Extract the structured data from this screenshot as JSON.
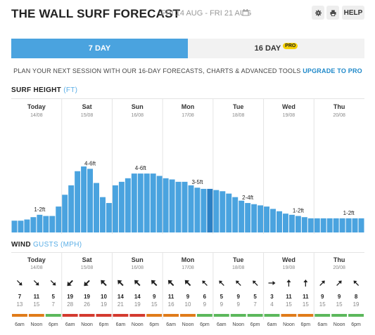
{
  "header": {
    "title": "THE WALL SURF FORECAST",
    "date_range": "FRI 14 AUG - FRI 21 AUG",
    "help_label": "HELP"
  },
  "icons": {
    "calendar": "calendar-icon",
    "settings": "gear-icon",
    "print": "print-icon"
  },
  "tabs": {
    "seven_day": "7 DAY",
    "sixteen_day": "16 DAY",
    "pro_badge": "PRO"
  },
  "promo": {
    "text": "PLAN YOUR NEXT SESSION WITH OUR 16-DAY FORECASTS, CHARTS & ADVANCED TOOLS ",
    "link": "UPGRADE TO PRO"
  },
  "surf": {
    "label": "SURF HEIGHT",
    "unit": "(FT)"
  },
  "wind": {
    "label": "WIND",
    "unit": "GUSTS (MPH)"
  },
  "days": [
    {
      "name": "Today",
      "date": "14/08"
    },
    {
      "name": "Sat",
      "date": "15/08"
    },
    {
      "name": "Sun",
      "date": "16/08"
    },
    {
      "name": "Mon",
      "date": "17/08"
    },
    {
      "name": "Tue",
      "date": "18/08"
    },
    {
      "name": "Wed",
      "date": "19/08"
    },
    {
      "name": "Thu",
      "date": "20/08"
    }
  ],
  "colors": {
    "bar": "#4aa3df",
    "bar_current": "#2b7fc4",
    "orange": "#e07b1a",
    "red": "#d43a2f",
    "green": "#5cb85c"
  },
  "chart_data": {
    "type": "bar",
    "title": "SURF HEIGHT",
    "ylabel": "(FT)",
    "values": [
      1.0,
      1.0,
      1.1,
      1.3,
      1.5,
      1.4,
      1.4,
      2.2,
      3.2,
      4.0,
      5.2,
      5.6,
      5.4,
      4.2,
      3.0,
      2.5,
      4.0,
      4.3,
      4.6,
      5.0,
      5.0,
      5.0,
      5.0,
      4.8,
      4.6,
      4.5,
      4.3,
      4.3,
      4.0,
      3.8,
      3.7,
      3.7,
      3.6,
      3.5,
      3.3,
      3.0,
      2.7,
      2.5,
      2.4,
      2.3,
      2.2,
      2.0,
      1.8,
      1.6,
      1.5,
      1.4,
      1.3,
      1.2,
      1.2,
      1.2,
      1.2,
      1.2,
      1.2,
      1.2,
      1.2,
      1.2
    ],
    "current_index": 31,
    "day_labels": [
      {
        "text": "1-2ft",
        "bar": 4
      },
      {
        "text": "4-6ft",
        "bar": 12
      },
      {
        "text": "4-6ft",
        "bar": 20
      },
      {
        "text": "3-5ft",
        "bar": 29
      },
      {
        "text": "2-4ft",
        "bar": 37
      },
      {
        "text": "1-2ft",
        "bar": 45
      },
      {
        "text": "1-2ft",
        "bar": 53
      }
    ],
    "ylim": [
      0,
      9
    ]
  },
  "wind_data": {
    "times": [
      "6am",
      "Noon",
      "6pm",
      "6am",
      "Noon",
      "6pm",
      "6am",
      "Noon",
      "6pm",
      "6am",
      "Noon",
      "6pm",
      "6am",
      "Noon",
      "6pm",
      "6am",
      "Noon",
      "6pm",
      "6am",
      "Noon",
      "6pm"
    ],
    "speeds": [
      "7",
      "11",
      "5",
      "19",
      "19",
      "10",
      "14",
      "14",
      "9",
      "11",
      "9",
      "6",
      "5",
      "9",
      "5",
      "3",
      "11",
      "11",
      "9",
      "9",
      "8"
    ],
    "gusts": [
      "13",
      "15",
      "7",
      "28",
      "26",
      "19",
      "21",
      "19",
      "15",
      "16",
      "10",
      "9",
      "9",
      "9",
      "7",
      "4",
      "15",
      "15",
      "15",
      "15",
      "19"
    ],
    "directions": [
      135,
      135,
      135,
      225,
      225,
      315,
      315,
      315,
      315,
      315,
      315,
      315,
      315,
      315,
      315,
      90,
      0,
      0,
      45,
      45,
      315
    ],
    "bold_arrows": [
      false,
      false,
      false,
      true,
      true,
      true,
      true,
      true,
      true,
      true,
      true,
      false,
      false,
      false,
      false,
      false,
      false,
      false,
      false,
      false,
      false
    ],
    "bar_colors": [
      "orange",
      "orange",
      "green",
      "red",
      "red",
      "red",
      "red",
      "red",
      "orange",
      "orange",
      "orange",
      "green",
      "green",
      "green",
      "green",
      "green",
      "orange",
      "orange",
      "green",
      "green",
      "green"
    ]
  }
}
